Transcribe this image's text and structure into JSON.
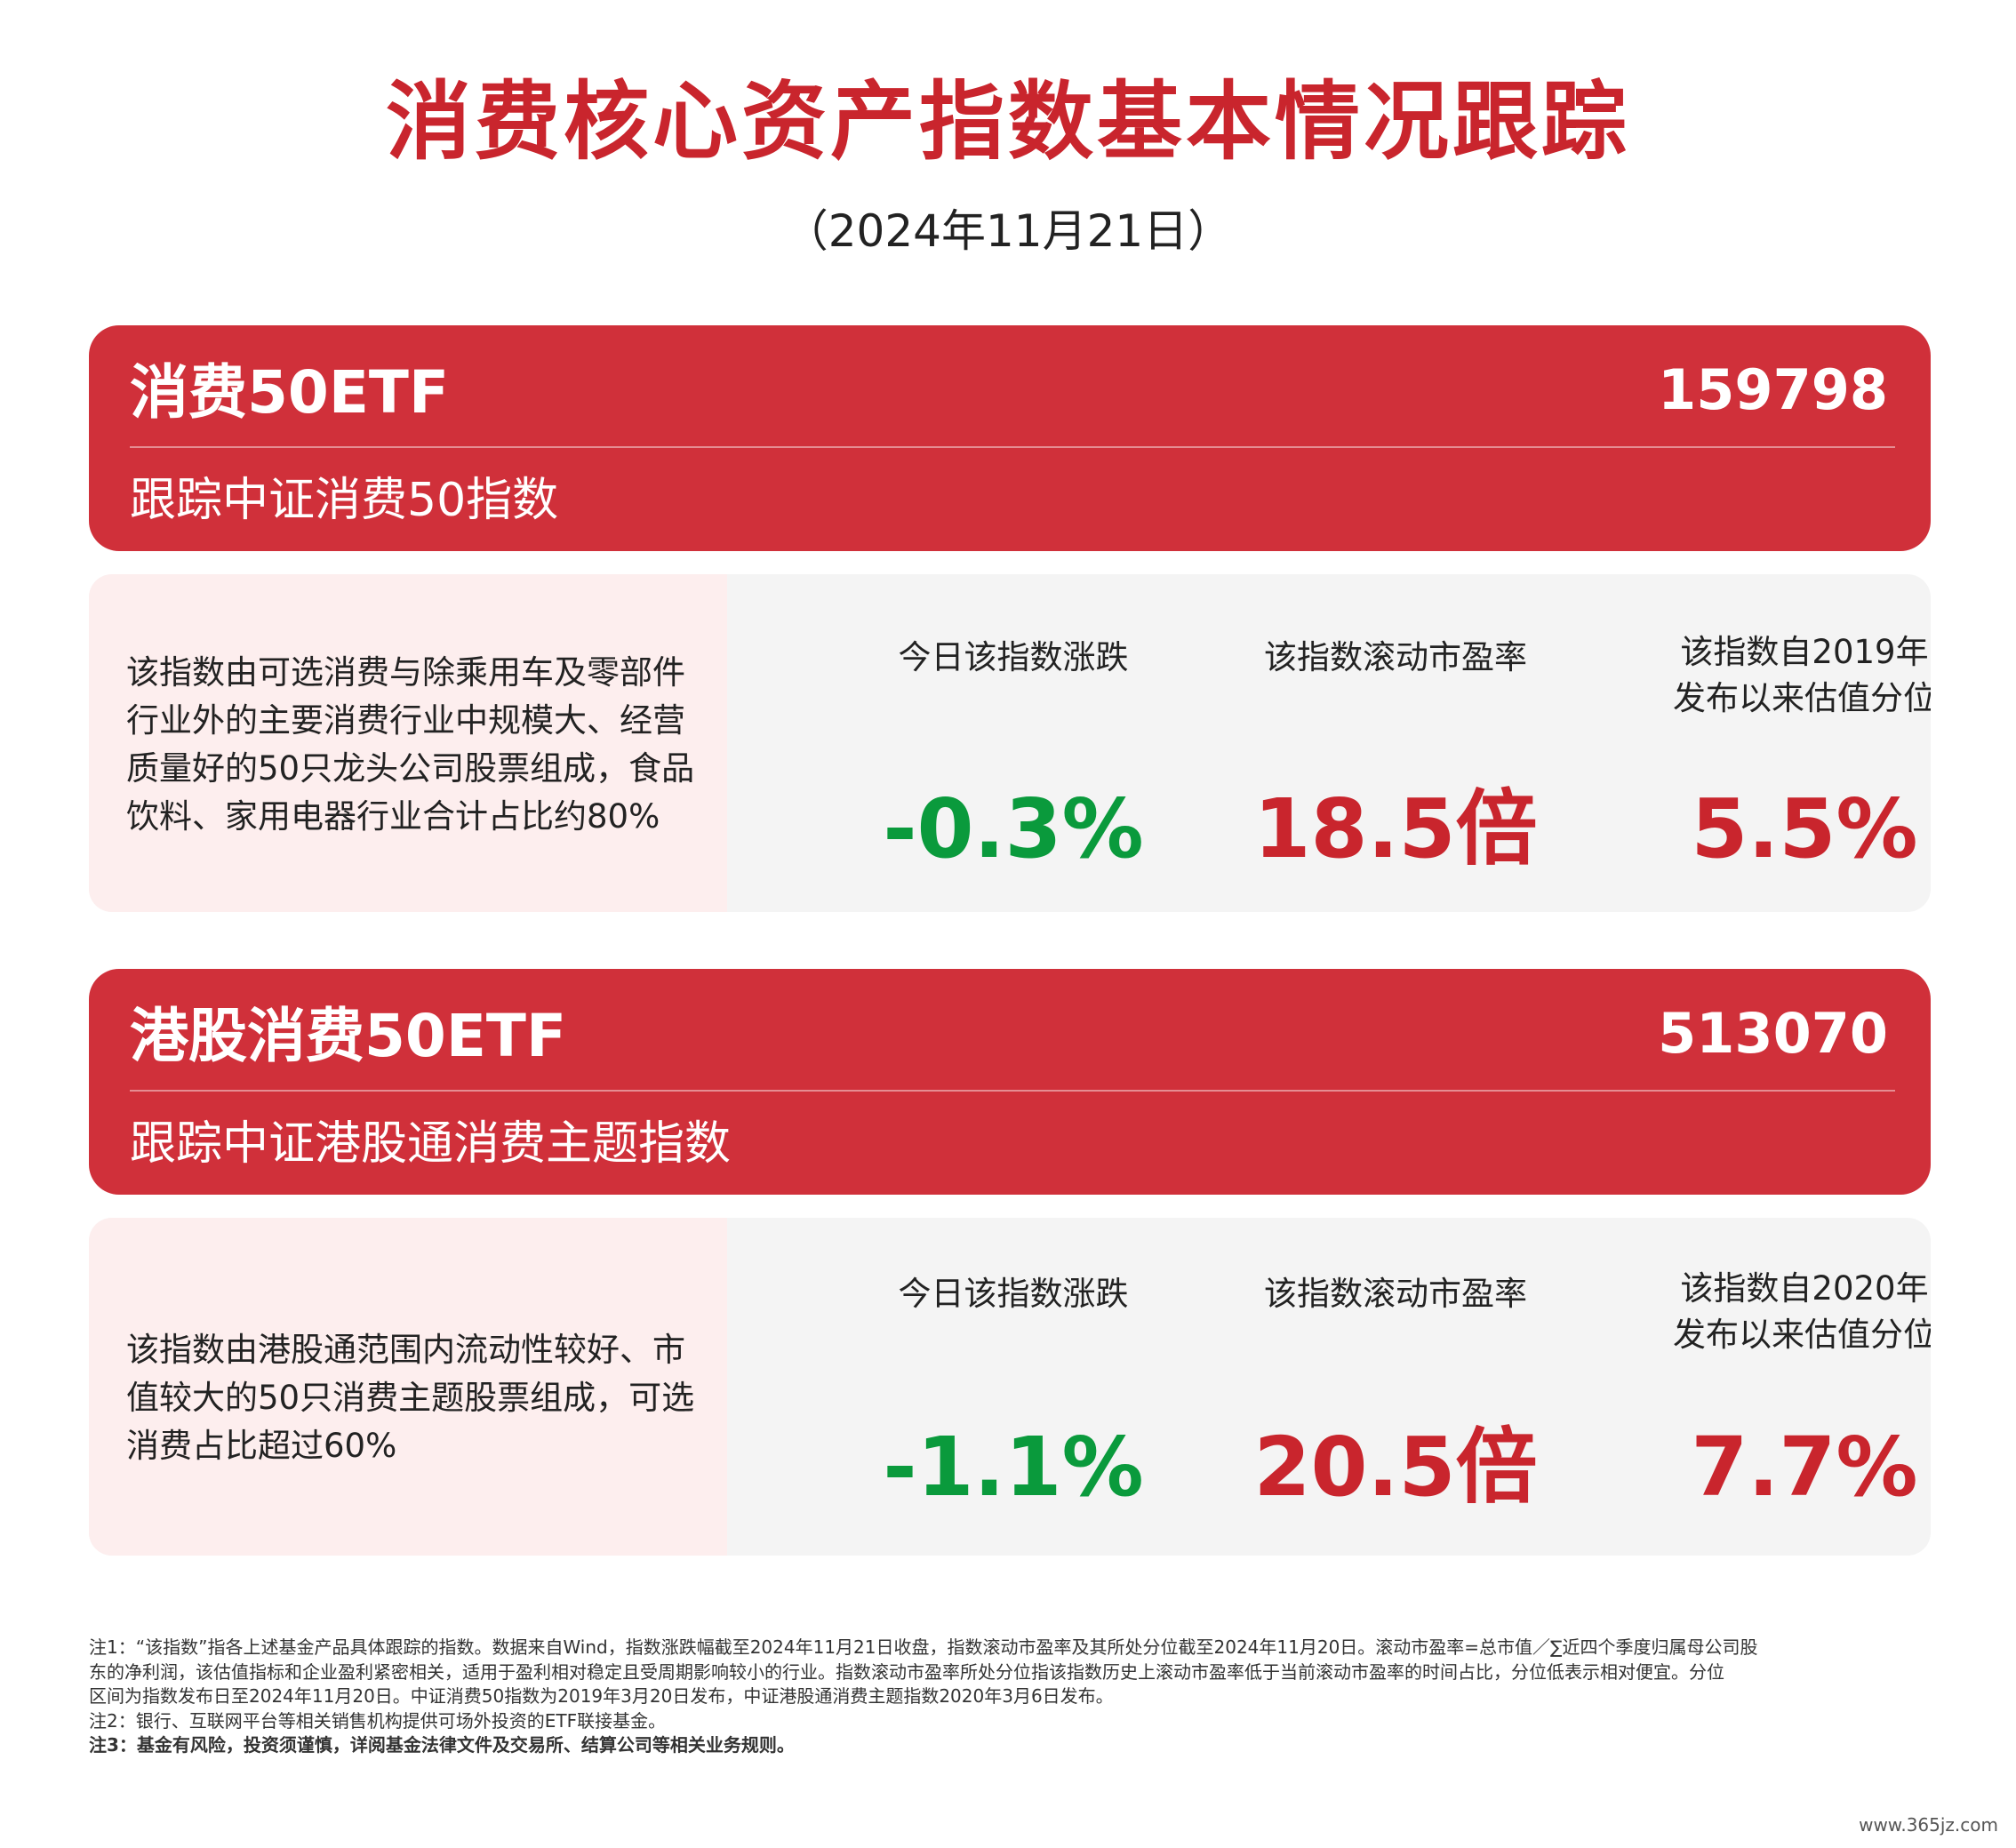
{
  "title": "消费核心资产指数基本情况跟踪",
  "date": "（2024年11月21日）",
  "funds": [
    {
      "name": "消费50ETF",
      "code": "159798",
      "tracks": "跟踪中证消费50指数",
      "description_lines": [
        "该指数由可选消费与除乘用车及零部件",
        "行业外的主要消费行业中规模大、经营",
        "质量好的50只龙头公司股票组成，食品",
        "饮料、家用电器行业合计占比约80%"
      ],
      "metrics": {
        "change_label": "今日该指数涨跌",
        "change_value": "-0.3%",
        "pe_label": "该指数滚动市盈率",
        "pe_value": "18.5倍",
        "percentile_label_line1": "该指数自2019年",
        "percentile_label_line2": "发布以来估值分位",
        "percentile_value": "5.5%"
      }
    },
    {
      "name": "港股消费50ETF",
      "code": "513070",
      "tracks": "跟踪中证港股通消费主题指数",
      "description_lines": [
        "该指数由港股通范围内流动性较好、市",
        "值较大的50只消费主题股票组成，可选",
        "消费占比超过60%"
      ],
      "metrics": {
        "change_label": "今日该指数涨跌",
        "change_value": "-1.1%",
        "pe_label": "该指数滚动市盈率",
        "pe_value": "20.5倍",
        "percentile_label_line1": "该指数自2020年",
        "percentile_label_line2": "发布以来估值分位",
        "percentile_value": "7.7%"
      }
    }
  ],
  "notes": {
    "note1_lines": [
      "注1：“该指数”指各上述基金产品具体跟踪的指数。数据来自Wind，指数涨跌幅截至2024年11月21日收盘，指数滚动市盈率及其所处分位截至2024年11月20日。滚动市盈率=总市值／∑近四个季度归属母公司股",
      "东的净利润，该估值指标和企业盈利紧密相关，适用于盈利相对稳定且受周期影响较小的行业。指数滚动市盈率所处分位指该指数历史上滚动市盈率低于当前滚动市盈率的时间占比，分位低表示相对便宜。分位",
      "区间为指数发布日至2024年11月20日。中证消费50指数为2019年3月20日发布，中证港股通消费主题指数2020年3月6日发布。"
    ],
    "note2": "注2：银行、互联网平台等相关销售机构提供可场外投资的ETF联接基金。",
    "note3": "注3：基金有风险，投资须谨慎，详阅基金法律文件及交易所、结算公司等相关业务规则。"
  },
  "watermark": "www.365jz.com",
  "colors": {
    "accent_red": "#d0303a",
    "title_red": "#c9252d",
    "change_green": "#0a9a3c",
    "desc_bg": "#fdeeee",
    "card_bg": "#f4f4f4"
  }
}
